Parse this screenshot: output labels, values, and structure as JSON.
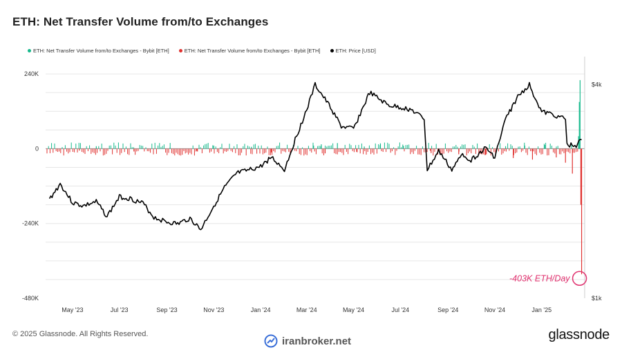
{
  "title": "ETH: Net Transfer Volume from/to Exchanges",
  "legend": [
    {
      "label": "ETH: Net Transfer Volume from/to Exchanges - Bybit [ETH]",
      "color": "#16b98c"
    },
    {
      "label": "ETH: Net Transfer Volume from/to Exchanges - Bybit [ETH]",
      "color": "#e0312f"
    },
    {
      "label": "ETH: Price [USD]",
      "color": "#000000"
    }
  ],
  "annotation": "-403K ETH/Day",
  "annotation_color": "#e0306e",
  "footer": {
    "copyright": "© 2025 Glassnode. All Rights Reserved.",
    "watermark": "iranbroker.net",
    "brand": "glassnode"
  },
  "chart_data": {
    "type": "bar+line",
    "x_tick_labels": [
      "May '23",
      "Jul '23",
      "Sep '23",
      "Nov '23",
      "Jan '24",
      "Mar '24",
      "May '24",
      "Jul '24",
      "Sep '24",
      "Nov '24",
      "Jan '25"
    ],
    "y_left_ticks": [
      "240K",
      "0",
      "-240K",
      "-480K"
    ],
    "y_right_ticks": [
      "$4k",
      "$1k"
    ],
    "y_left_range": [
      -480000,
      300000
    ],
    "price_axis": "log",
    "price_range": [
      1000,
      4800
    ],
    "grid": "horizontal",
    "series": [
      {
        "name": "ETH: Price [USD]",
        "type": "line",
        "color": "#000000",
        "x": [
          "2023-04-01",
          "2023-04-15",
          "2023-05-01",
          "2023-05-15",
          "2023-06-01",
          "2023-06-15",
          "2023-07-01",
          "2023-07-15",
          "2023-08-01",
          "2023-08-15",
          "2023-09-01",
          "2023-09-15",
          "2023-10-01",
          "2023-10-15",
          "2023-11-01",
          "2023-11-15",
          "2023-12-01",
          "2023-12-15",
          "2024-01-01",
          "2024-01-15",
          "2024-02-01",
          "2024-02-15",
          "2024-03-01",
          "2024-03-12",
          "2024-04-01",
          "2024-04-15",
          "2024-05-01",
          "2024-05-22",
          "2024-06-15",
          "2024-07-01",
          "2024-07-15",
          "2024-08-01",
          "2024-08-05",
          "2024-08-20",
          "2024-09-06",
          "2024-09-20",
          "2024-10-01",
          "2024-10-20",
          "2024-11-01",
          "2024-11-15",
          "2024-12-01",
          "2024-12-16",
          "2025-01-01",
          "2025-01-15",
          "2025-02-01",
          "2025-02-03",
          "2025-02-15",
          "2025-02-22"
        ],
        "y": [
          1900,
          2100,
          1860,
          1820,
          1870,
          1700,
          1930,
          1910,
          1850,
          1690,
          1640,
          1620,
          1680,
          1560,
          1820,
          2050,
          2250,
          2290,
          2350,
          2500,
          2300,
          2800,
          3400,
          4000,
          3450,
          3050,
          3000,
          3800,
          3500,
          3450,
          3400,
          3200,
          2300,
          2600,
          2300,
          2550,
          2450,
          2650,
          2500,
          3200,
          3700,
          4000,
          3350,
          3300,
          3200,
          2700,
          2700,
          2800
        ]
      },
      {
        "name": "ETH: Net Transfer Volume from/to Exchanges - Bybit [ETH]",
        "type": "bar",
        "color": "#16b98c",
        "sign": "positive",
        "x": [
          "2023-06-01",
          "2023-09-05",
          "2023-11-01",
          "2023-12-20",
          "2024-03-10",
          "2024-03-20",
          "2024-04-10",
          "2024-05-15",
          "2024-06-05",
          "2024-07-05",
          "2024-11-15",
          "2024-12-10",
          "2025-01-05",
          "2025-02-18",
          "2025-02-19",
          "2025-02-20"
        ],
        "y": [
          8000,
          4000,
          10000,
          6000,
          10000,
          14000,
          18000,
          7000,
          17000,
          9000,
          8000,
          10000,
          12000,
          40000,
          150000,
          220000
        ]
      },
      {
        "name": "ETH: Net Transfer Volume from/to Exchanges - Bybit [ETH]",
        "type": "bar",
        "color": "#e0312f",
        "sign": "negative",
        "x": [
          "2023-05-10",
          "2023-07-20",
          "2023-10-10",
          "2024-01-15",
          "2024-03-25",
          "2024-05-05",
          "2024-08-10",
          "2024-09-15",
          "2024-10-20",
          "2024-11-25",
          "2024-12-20",
          "2025-01-20",
          "2025-02-01",
          "2025-02-10",
          "2025-02-21",
          "2025-02-22"
        ],
        "y": [
          -6000,
          -9000,
          -7000,
          -12000,
          -15000,
          -10000,
          -14000,
          -18000,
          -20000,
          -30000,
          -35000,
          -28000,
          -45000,
          -80000,
          -180000,
          -403000
        ]
      }
    ]
  }
}
